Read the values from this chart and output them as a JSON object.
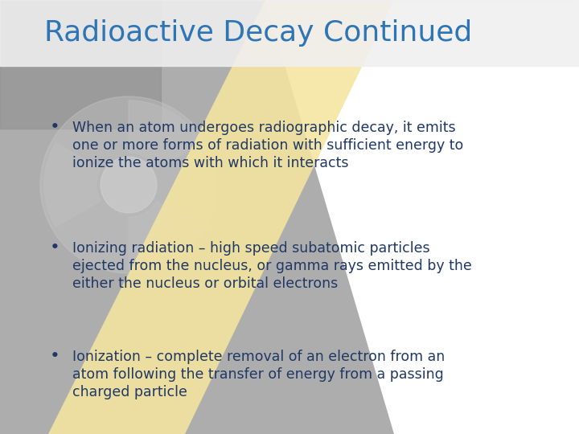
{
  "title": "Radioactive Decay Continued",
  "title_color": "#2E75B6",
  "title_fontsize": 26,
  "bullet_color": "#1F3864",
  "bullet_fontsize": 12.5,
  "bullets": [
    "When an atom undergoes radiographic decay, it emits\none or more forms of radiation with sufficient energy to\nionize the atoms with which it interacts",
    "Ionizing radiation – high speed subatomic particles\nejected from the nucleus, or gamma rays emitted by the\neither the nucleus or orbital electrons",
    "Ionization – complete removal of an electron from an\natom following the transfer of energy from a passing\ncharged particle"
  ],
  "bg_gray": "#aaaaaa",
  "bg_gray_dark": "#888888",
  "diagonal_color": "#F5E4A0",
  "white_color": "#ffffff",
  "title_bar_color": "#e8e8e8"
}
